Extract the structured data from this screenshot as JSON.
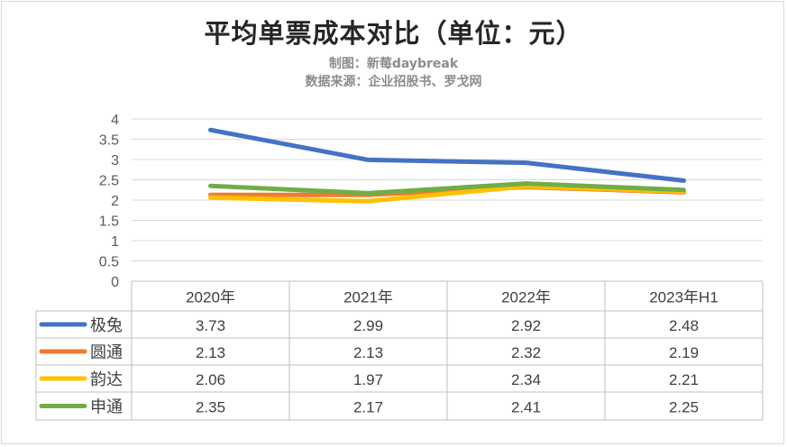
{
  "chart_data": {
    "type": "line",
    "title": "平均单票成本对比（单位：元）",
    "subtitle_lines": [
      "制图：新莓daybreak",
      "数据来源：企业招股书、罗戈网"
    ],
    "categories": [
      "2020年",
      "2021年",
      "2022年",
      "2023年H1"
    ],
    "y_ticks": [
      "0",
      "0.5",
      "1",
      "1.5",
      "2",
      "2.5",
      "3",
      "3.5",
      "4"
    ],
    "ylim": [
      0,
      4
    ],
    "grid": true,
    "legend_placement": "data-table",
    "series": [
      {
        "name": "极兔",
        "color": "#4472c4",
        "values": [
          3.73,
          2.99,
          2.92,
          2.48
        ],
        "labels": [
          "3.73",
          "2.99",
          "2.92",
          "2.48"
        ]
      },
      {
        "name": "圆通",
        "color": "#ed7d31",
        "values": [
          2.13,
          2.13,
          2.32,
          2.19
        ],
        "labels": [
          "2.13",
          "2.13",
          "2.32",
          "2.19"
        ]
      },
      {
        "name": "韵达",
        "color": "#ffc000",
        "values": [
          2.06,
          1.97,
          2.34,
          2.21
        ],
        "labels": [
          "2.06",
          "1.97",
          "2.34",
          "2.21"
        ]
      },
      {
        "name": "申通",
        "color": "#70ad47",
        "values": [
          2.35,
          2.17,
          2.41,
          2.25
        ],
        "labels": [
          "2.35",
          "2.17",
          "2.41",
          "2.25"
        ]
      }
    ]
  }
}
